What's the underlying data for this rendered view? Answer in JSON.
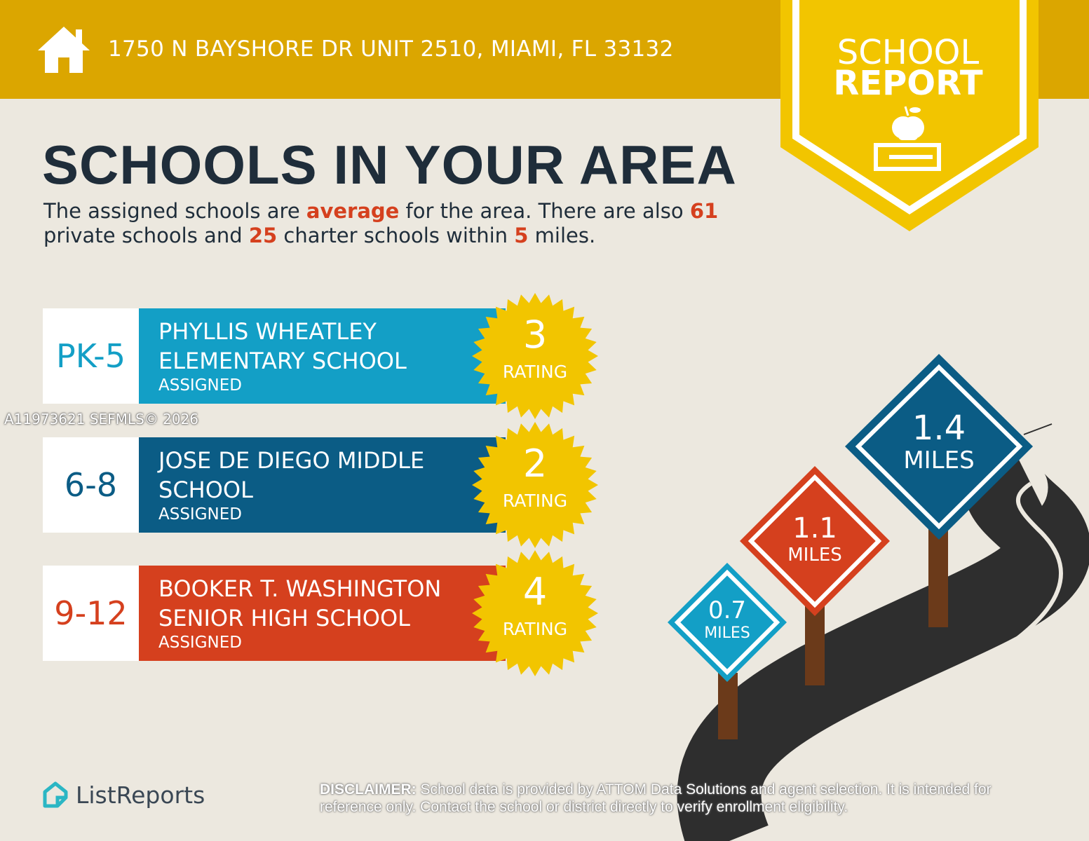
{
  "header": {
    "address": "1750 N BAYSHORE DR UNIT 2510, MIAMI, FL 33132",
    "icon": "house-icon"
  },
  "badge": {
    "line1": "SCHOOL",
    "line2": "REPORT",
    "icon": "apple-on-book-icon"
  },
  "title": "SCHOOLS IN YOUR AREA",
  "intro": {
    "p1": "The assigned schools are ",
    "w1": "average",
    "p2": " for the area. There are also ",
    "w2": "61",
    "p3": " private schools and ",
    "w3": "25",
    "p4": " charter schools within ",
    "w4": "5",
    "p5": " miles."
  },
  "schools": [
    {
      "grades": "PK-5",
      "name": "PHYLLIS WHEATLEY ELEMENTARY SCHOOL",
      "status": "ASSIGNED",
      "rating": "3",
      "rating_label": "RATING",
      "color": "#139fc6"
    },
    {
      "grades": "6-8",
      "name": "JOSE DE DIEGO MIDDLE SCHOOL",
      "status": "ASSIGNED",
      "rating": "2",
      "rating_label": "RATING",
      "color": "#0b5c85"
    },
    {
      "grades": "9-12",
      "name": "BOOKER T. WASHINGTON SENIOR HIGH SCHOOL",
      "status": "ASSIGNED",
      "rating": "4",
      "rating_label": "RATING",
      "color": "#d5401e"
    }
  ],
  "signs": [
    {
      "distance": "1.4",
      "unit": "MILES",
      "color": "#0b5c85"
    },
    {
      "distance": "1.1",
      "unit": "MILES",
      "color": "#d5401e"
    },
    {
      "distance": "0.7",
      "unit": "MILES",
      "color": "#139fc6"
    }
  ],
  "watermark": "A11973621  SEFMLS© 2026",
  "logo": "ListReports",
  "disclaimer": {
    "label": "DISCLAIMER:",
    "text": " School data is provided by ATTOM Data Solutions and agent selection. It is intended for reference only. Contact the school or district directly to verify enrollment eligibility."
  },
  "colors": {
    "header": "#dba600",
    "badge": "#f2c500",
    "background": "#ece8df",
    "highlight": "#d5401e"
  }
}
